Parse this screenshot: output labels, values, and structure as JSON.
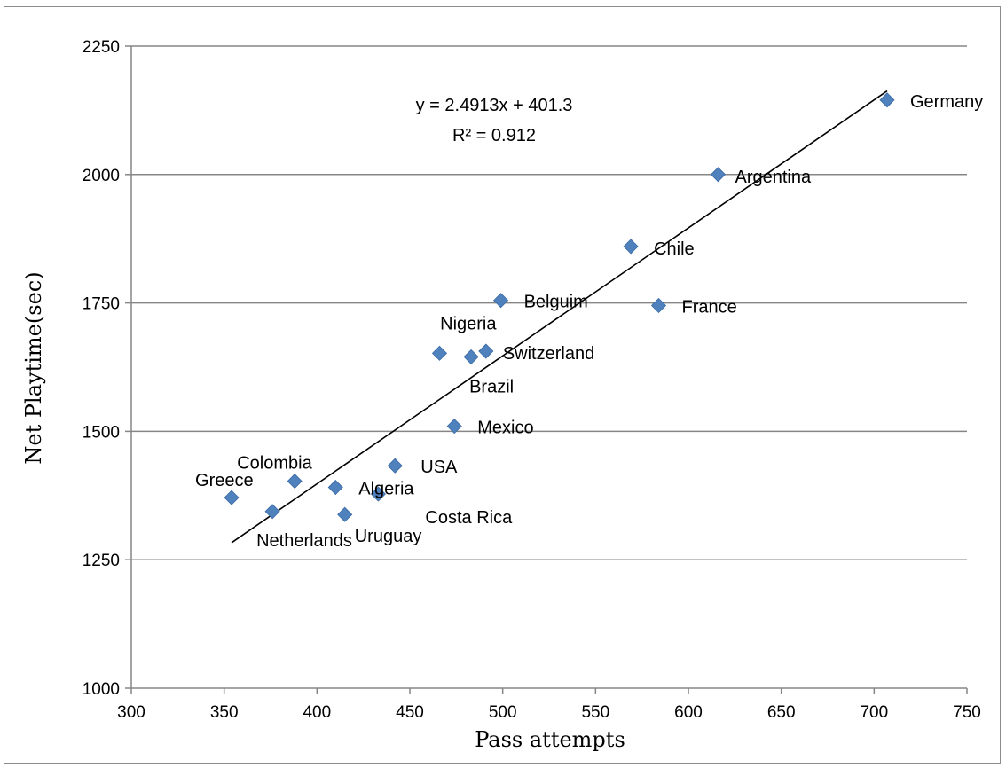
{
  "chart_data": {
    "type": "scatter",
    "xlabel": "Pass attempts",
    "ylabel": "Net Playtime(sec)",
    "xlim": [
      300,
      750
    ],
    "ylim": [
      1000,
      2250
    ],
    "xticks": [
      300,
      350,
      400,
      450,
      500,
      550,
      600,
      650,
      700,
      750
    ],
    "yticks": [
      1000,
      1250,
      1500,
      1750,
      2000,
      2250
    ],
    "grid": "horizontal",
    "marker_color": "#4f81bd",
    "points": [
      {
        "label": "Germany",
        "x": 707,
        "y": 2145
      },
      {
        "label": "Argentina",
        "x": 616,
        "y": 2000
      },
      {
        "label": "Chile",
        "x": 569,
        "y": 1860
      },
      {
        "label": "Belguim",
        "x": 499,
        "y": 1755
      },
      {
        "label": "France",
        "x": 584,
        "y": 1745
      },
      {
        "label": "Nigeria",
        "x": 466,
        "y": 1652
      },
      {
        "label": "Switzerland",
        "x": 491,
        "y": 1656
      },
      {
        "label": "Brazil",
        "x": 483,
        "y": 1645
      },
      {
        "label": "Mexico",
        "x": 474,
        "y": 1510
      },
      {
        "label": "USA",
        "x": 442,
        "y": 1433
      },
      {
        "label": "Colombia",
        "x": 388,
        "y": 1403
      },
      {
        "label": "Algeria",
        "x": 410,
        "y": 1391
      },
      {
        "label": "Costa Rica",
        "x": 433,
        "y": 1378
      },
      {
        "label": "Greece",
        "x": 354,
        "y": 1371
      },
      {
        "label": "Netherlands",
        "x": 376,
        "y": 1344
      },
      {
        "label": "Uruguay",
        "x": 415,
        "y": 1338
      }
    ],
    "trendline": {
      "type": "linear",
      "slope": 2.4913,
      "intercept": 401.3,
      "x_range": [
        354,
        707
      ],
      "equation": "y = 2.4913x + 401.3",
      "r_squared": "R² = 0.912"
    }
  }
}
